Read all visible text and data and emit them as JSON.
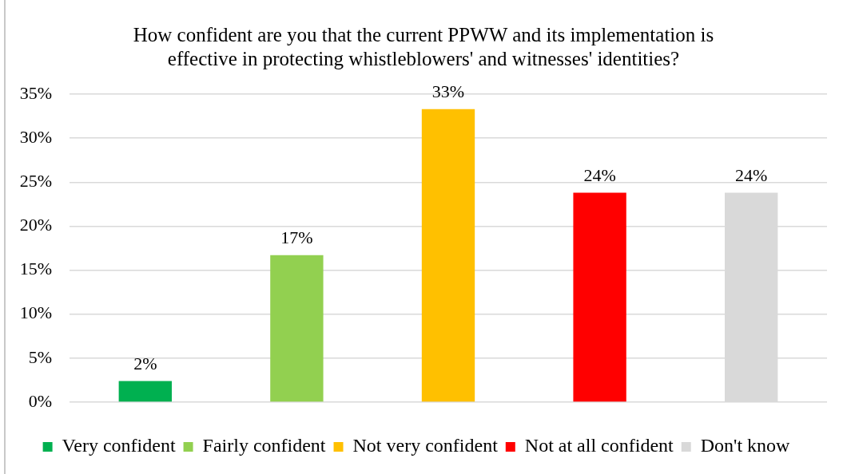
{
  "chart_data": {
    "type": "bar",
    "title": "How confident are you that the current PPWW and its implementation is effective in protecting whistleblowers' and witnesses' identities?",
    "categories": [
      null,
      null,
      null,
      null,
      null
    ],
    "series": [
      {
        "name": "Very confident",
        "color": "#00b050",
        "values": [
          2.4,
          null,
          null,
          null,
          null
        ],
        "value_labels": [
          "2%",
          null,
          null,
          null,
          null
        ]
      },
      {
        "name": "Fairly confident",
        "color": "#92d050",
        "values": [
          null,
          16.7,
          null,
          null,
          null
        ],
        "value_labels": [
          null,
          "17%",
          null,
          null,
          null
        ]
      },
      {
        "name": "Not very confident",
        "color": "#ffc000",
        "values": [
          null,
          null,
          33.3,
          null,
          null
        ],
        "value_labels": [
          null,
          null,
          "33%",
          null,
          null
        ]
      },
      {
        "name": "Not at all confident",
        "color": "#ff0000",
        "values": [
          null,
          null,
          null,
          23.8,
          null
        ],
        "value_labels": [
          null,
          null,
          null,
          "24%",
          null
        ]
      },
      {
        "name": "Don't know",
        "color": "#d9d9d9",
        "values": [
          null,
          null,
          null,
          null,
          23.8
        ],
        "value_labels": [
          null,
          null,
          null,
          null,
          "24%"
        ]
      }
    ],
    "ylim": [
      0,
      35
    ],
    "yticks": [
      {
        "value": 0,
        "label": "0%"
      },
      {
        "value": 5,
        "label": "5%"
      },
      {
        "value": 10,
        "label": "10%"
      },
      {
        "value": 15,
        "label": "15%"
      },
      {
        "value": 20,
        "label": "20%"
      },
      {
        "value": 25,
        "label": "25%"
      },
      {
        "value": 30,
        "label": "30%"
      },
      {
        "value": 35,
        "label": "35%"
      }
    ],
    "grid": "y",
    "legend": "bottom",
    "tick_labels": "y"
  }
}
